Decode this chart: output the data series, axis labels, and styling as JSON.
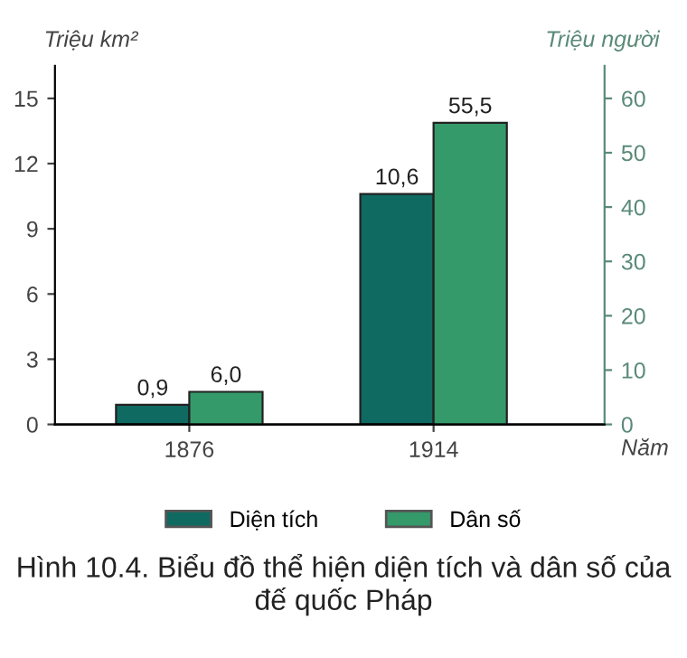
{
  "chart_data": {
    "type": "bar",
    "title": "Hình 10.4. Biểu đồ thể hiện diện tích và dân số của đế quốc Pháp",
    "ylabel": "Triệu km²",
    "y2label": "Triệu người",
    "xlabel": "Năm",
    "categories": [
      "1876",
      "1914"
    ],
    "series": [
      {
        "name": "Diện tích",
        "color": "#0f6a62",
        "values": [
          0.9,
          10.6
        ],
        "value_labels": [
          "0,9",
          "10,6"
        ]
      },
      {
        "name": "Dân số",
        "color": "#359a6a",
        "values": [
          6.0,
          55.5
        ],
        "value_labels": [
          "6,0",
          "55,5"
        ],
        "axis": "y2"
      }
    ],
    "ylim": [
      0,
      16.5
    ],
    "yticks": [
      0,
      3,
      6,
      9,
      12,
      15
    ],
    "y2lim": [
      0,
      66
    ],
    "y2ticks": [
      0,
      10,
      20,
      30,
      40,
      50,
      60
    ],
    "legend": "bottom",
    "grid": false
  }
}
